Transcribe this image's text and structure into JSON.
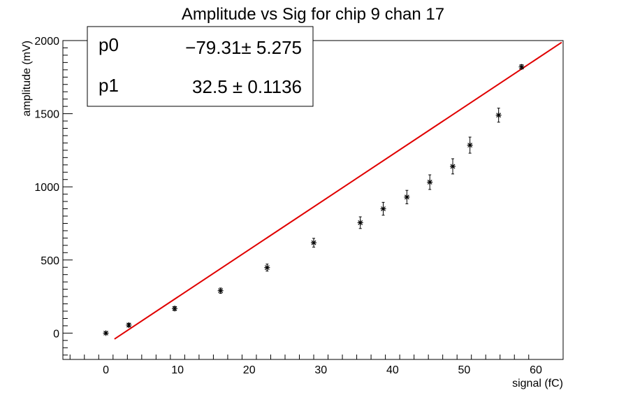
{
  "chart_data": {
    "type": "scatter",
    "title": "Amplitude vs Sig for chip 9 chan 17",
    "xlabel": "signal (fC)",
    "ylabel": "amplitude (mV)",
    "xlim": [
      -6,
      63.8
    ],
    "ylim": [
      -180,
      2000
    ],
    "x_ticks": [
      0,
      10,
      20,
      30,
      40,
      50,
      60
    ],
    "y_ticks": [
      0,
      500,
      1000,
      1500,
      2000
    ],
    "points": [
      {
        "x": 0.0,
        "y": 0,
        "err": 8
      },
      {
        "x": 3.2,
        "y": 55,
        "err": 12
      },
      {
        "x": 9.6,
        "y": 168,
        "err": 14
      },
      {
        "x": 16.0,
        "y": 290,
        "err": 18
      },
      {
        "x": 22.5,
        "y": 448,
        "err": 24
      },
      {
        "x": 29.0,
        "y": 618,
        "err": 30
      },
      {
        "x": 35.5,
        "y": 755,
        "err": 40
      },
      {
        "x": 38.7,
        "y": 850,
        "err": 44
      },
      {
        "x": 42.0,
        "y": 930,
        "err": 46
      },
      {
        "x": 45.2,
        "y": 1032,
        "err": 50
      },
      {
        "x": 48.4,
        "y": 1140,
        "err": 52
      },
      {
        "x": 50.8,
        "y": 1285,
        "err": 55
      },
      {
        "x": 54.8,
        "y": 1490,
        "err": 48
      },
      {
        "x": 58.0,
        "y": 1820,
        "err": 15
      }
    ],
    "fit": {
      "x_range": [
        1.2,
        63.6
      ],
      "intercept": -79.31,
      "slope": 32.5,
      "color": "#e00000"
    },
    "stats": [
      {
        "name": "p0",
        "value": "−79.31",
        "pm": "±",
        "error": "5.275"
      },
      {
        "name": "p1",
        "value": "32.5",
        "pm": "±",
        "error": "0.1136"
      }
    ]
  }
}
